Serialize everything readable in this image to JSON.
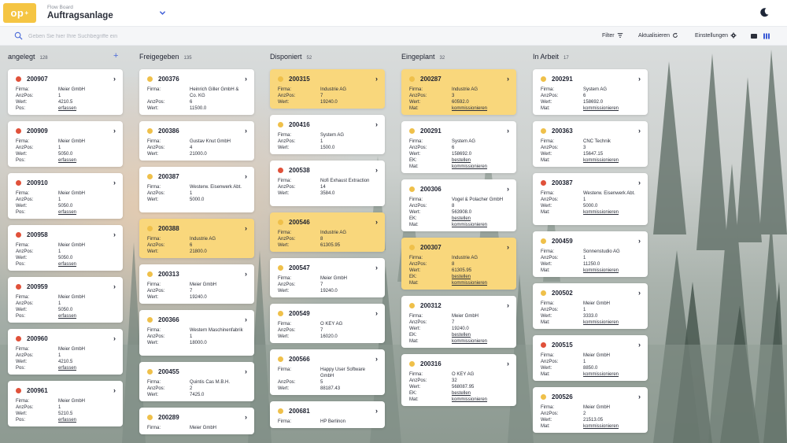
{
  "header": {
    "logo": "op",
    "logo_sup": "+",
    "subtitle": "Flow Board",
    "title": "Auftragsanlage"
  },
  "toolbar": {
    "search_placeholder": "Geben Sie hier Ihre Suchbegriffe ein",
    "filter_label": "Filter",
    "refresh_label": "Aktualisieren",
    "settings_label": "Einstellungen"
  },
  "labels": {
    "firma": "Firma:",
    "anzpos": "AnzPos:",
    "wert": "Wert:",
    "pos": "Pos:",
    "ek": "EK:",
    "mat": "Mat:"
  },
  "colors": {
    "accent": "#f5c543",
    "red": "#e0513a",
    "yellow": "#efc04a",
    "highlight": "#f9d77c"
  },
  "columns": [
    {
      "title": "angelegt",
      "count": "128",
      "add": "+",
      "cards": [
        {
          "id": "200907",
          "dot": "red",
          "hl": false,
          "rows": [
            [
              "firma",
              "Meier GmbH"
            ],
            [
              "anzpos",
              "1"
            ],
            [
              "wert",
              "4210.5"
            ],
            [
              "pos",
              "erfassen"
            ]
          ]
        },
        {
          "id": "200909",
          "dot": "red",
          "hl": false,
          "rows": [
            [
              "firma",
              "Meier GmbH"
            ],
            [
              "anzpos",
              "1"
            ],
            [
              "wert",
              "5050.0"
            ],
            [
              "pos",
              "erfassen"
            ]
          ]
        },
        {
          "id": "200910",
          "dot": "red",
          "hl": false,
          "rows": [
            [
              "firma",
              "Meier GmbH"
            ],
            [
              "anzpos",
              "1"
            ],
            [
              "wert",
              "5050.0"
            ],
            [
              "pos",
              "erfassen"
            ]
          ]
        },
        {
          "id": "200958",
          "dot": "red",
          "hl": false,
          "rows": [
            [
              "firma",
              "Meier GmbH"
            ],
            [
              "anzpos",
              "1"
            ],
            [
              "wert",
              "5050.0"
            ],
            [
              "pos",
              "erfassen"
            ]
          ]
        },
        {
          "id": "200959",
          "dot": "red",
          "hl": false,
          "rows": [
            [
              "firma",
              "Meier GmbH"
            ],
            [
              "anzpos",
              "1"
            ],
            [
              "wert",
              "5050.0"
            ],
            [
              "pos",
              "erfassen"
            ]
          ]
        },
        {
          "id": "200960",
          "dot": "red",
          "hl": false,
          "rows": [
            [
              "firma",
              "Meier GmbH"
            ],
            [
              "anzpos",
              "1"
            ],
            [
              "wert",
              "4210.5"
            ],
            [
              "pos",
              "erfassen"
            ]
          ]
        },
        {
          "id": "200961",
          "dot": "red",
          "hl": false,
          "rows": [
            [
              "firma",
              "Meier GmbH"
            ],
            [
              "anzpos",
              "1"
            ],
            [
              "wert",
              "5210.5"
            ],
            [
              "pos",
              "erfassen"
            ]
          ]
        }
      ]
    },
    {
      "title": "Freigegeben",
      "count": "135",
      "cards": [
        {
          "id": "200376",
          "dot": "yellow",
          "hl": false,
          "rows": [
            [
              "firma",
              "Heinrich Giller GmbH & Co. KG"
            ],
            [
              "anzpos",
              "6"
            ],
            [
              "wert",
              "11500.0"
            ]
          ]
        },
        {
          "id": "200386",
          "dot": "yellow",
          "hl": false,
          "rows": [
            [
              "firma",
              "Gustav Knut GmbH"
            ],
            [
              "anzpos",
              "4"
            ],
            [
              "wert",
              "21000.0"
            ]
          ]
        },
        {
          "id": "200387",
          "dot": "yellow",
          "hl": false,
          "rows": [
            [
              "firma",
              "Westerw. Eisenwerk Abt."
            ],
            [
              "anzpos",
              "1"
            ],
            [
              "wert",
              "5000.0"
            ]
          ]
        },
        {
          "id": "200388",
          "dot": "yellow",
          "hl": true,
          "rows": [
            [
              "firma",
              "Industrie AG"
            ],
            [
              "anzpos",
              "6"
            ],
            [
              "wert",
              "21800.0"
            ]
          ]
        },
        {
          "id": "200313",
          "dot": "yellow",
          "hl": false,
          "rows": [
            [
              "firma",
              "Meier GmbH"
            ],
            [
              "anzpos",
              "7"
            ],
            [
              "wert",
              "19240.0"
            ]
          ]
        },
        {
          "id": "200366",
          "dot": "yellow",
          "hl": false,
          "rows": [
            [
              "firma",
              "Western Maschinenfabrik"
            ],
            [
              "anzpos",
              "1"
            ],
            [
              "wert",
              "18000.0"
            ]
          ]
        },
        {
          "id": "200455",
          "dot": "yellow",
          "hl": false,
          "rows": [
            [
              "firma",
              "Quintis Cas M.B.H."
            ],
            [
              "anzpos",
              "2"
            ],
            [
              "wert",
              "7425.0"
            ]
          ]
        },
        {
          "id": "200289",
          "dot": "yellow",
          "hl": false,
          "rows": [
            [
              "firma",
              "Meier GmbH"
            ]
          ]
        }
      ]
    },
    {
      "title": "Disponiert",
      "count": "52",
      "cards": [
        {
          "id": "200315",
          "dot": "yellow",
          "hl": true,
          "rows": [
            [
              "firma",
              "Industrie AG"
            ],
            [
              "anzpos",
              "7"
            ],
            [
              "wert",
              "19240.0"
            ]
          ]
        },
        {
          "id": "200416",
          "dot": "yellow",
          "hl": false,
          "rows": [
            [
              "firma",
              "System AG"
            ],
            [
              "anzpos",
              "1"
            ],
            [
              "wert",
              "1500.0"
            ]
          ]
        },
        {
          "id": "200538",
          "dot": "red",
          "hl": false,
          "rows": [
            [
              "firma",
              "Nofi Exhaust Extraction"
            ],
            [
              "anzpos",
              "14"
            ],
            [
              "wert",
              "3584.0"
            ]
          ]
        },
        {
          "id": "200546",
          "dot": "yellow",
          "hl": true,
          "rows": [
            [
              "firma",
              "Industrie AG"
            ],
            [
              "anzpos",
              "8"
            ],
            [
              "wert",
              "61305.95"
            ]
          ]
        },
        {
          "id": "200547",
          "dot": "yellow",
          "hl": false,
          "rows": [
            [
              "firma",
              "Meier GmbH"
            ],
            [
              "anzpos",
              "7"
            ],
            [
              "wert",
              "19240.0"
            ]
          ]
        },
        {
          "id": "200549",
          "dot": "yellow",
          "hl": false,
          "rows": [
            [
              "firma",
              "O KEY AG"
            ],
            [
              "anzpos",
              "7"
            ],
            [
              "wert",
              "16020.0"
            ]
          ]
        },
        {
          "id": "200566",
          "dot": "yellow",
          "hl": false,
          "rows": [
            [
              "firma",
              "Happy User Software GmbH"
            ],
            [
              "anzpos",
              "5"
            ],
            [
              "wert",
              "88187.43"
            ]
          ]
        },
        {
          "id": "200681",
          "dot": "yellow",
          "hl": false,
          "rows": [
            [
              "firma",
              "HP Berlinon"
            ]
          ]
        }
      ]
    },
    {
      "title": "Eingeplant",
      "count": "32",
      "cards": [
        {
          "id": "200287",
          "dot": "yellow",
          "hl": true,
          "rows": [
            [
              "firma",
              "Industrie AG"
            ],
            [
              "anzpos",
              "3"
            ],
            [
              "wert",
              "60592.0"
            ],
            [
              "mat",
              "kommissionieren"
            ]
          ]
        },
        {
          "id": "200291",
          "dot": "yellow",
          "hl": false,
          "rows": [
            [
              "firma",
              "System AG"
            ],
            [
              "anzpos",
              "6"
            ],
            [
              "wert",
              "158692.0"
            ],
            [
              "ek",
              "bestellen"
            ],
            [
              "mat",
              "kommissionieren"
            ]
          ]
        },
        {
          "id": "200306",
          "dot": "yellow",
          "hl": false,
          "rows": [
            [
              "firma",
              "Vogel & Polacher GmbH"
            ],
            [
              "anzpos",
              "8"
            ],
            [
              "wert",
              "563908.0"
            ],
            [
              "ek",
              "bestellen"
            ],
            [
              "mat",
              "kommissionieren"
            ]
          ]
        },
        {
          "id": "200307",
          "dot": "yellow",
          "hl": true,
          "rows": [
            [
              "firma",
              "Industrie AG"
            ],
            [
              "anzpos",
              "8"
            ],
            [
              "wert",
              "61305.95"
            ],
            [
              "ek",
              "bestellen"
            ],
            [
              "mat",
              "kommissionieren"
            ]
          ]
        },
        {
          "id": "200312",
          "dot": "yellow",
          "hl": false,
          "rows": [
            [
              "firma",
              "Meier GmbH"
            ],
            [
              "anzpos",
              "7"
            ],
            [
              "wert",
              "19240.0"
            ],
            [
              "ek",
              "bestellen"
            ],
            [
              "mat",
              "kommissionieren"
            ]
          ]
        },
        {
          "id": "200316",
          "dot": "yellow",
          "hl": false,
          "rows": [
            [
              "firma",
              "O KEY AG"
            ],
            [
              "anzpos",
              "32"
            ],
            [
              "wert",
              "568087.95"
            ],
            [
              "ek",
              "bestellen"
            ],
            [
              "mat",
              "kommissionieren"
            ]
          ]
        }
      ]
    },
    {
      "title": "In Arbeit",
      "count": "17",
      "cards": [
        {
          "id": "200291",
          "dot": "yellow",
          "hl": false,
          "rows": [
            [
              "firma",
              "System AG"
            ],
            [
              "anzpos",
              "6"
            ],
            [
              "wert",
              "158692.0"
            ],
            [
              "mat",
              "kommissionieren"
            ]
          ]
        },
        {
          "id": "200363",
          "dot": "yellow",
          "hl": false,
          "rows": [
            [
              "firma",
              "CNC Technik"
            ],
            [
              "anzpos",
              "3"
            ],
            [
              "wert",
              "15647.15"
            ],
            [
              "mat",
              "kommissionieren"
            ]
          ]
        },
        {
          "id": "200387",
          "dot": "red",
          "hl": false,
          "rows": [
            [
              "firma",
              "Westerw. Eisenwerk Abt."
            ],
            [
              "anzpos",
              "1"
            ],
            [
              "wert",
              "5000.0"
            ],
            [
              "mat",
              "kommissionieren"
            ]
          ]
        },
        {
          "id": "200459",
          "dot": "yellow",
          "hl": false,
          "rows": [
            [
              "firma",
              "Sonnenstudio AG"
            ],
            [
              "anzpos",
              "1"
            ],
            [
              "wert",
              "11250.0"
            ],
            [
              "mat",
              "kommissionieren"
            ]
          ]
        },
        {
          "id": "200502",
          "dot": "yellow",
          "hl": false,
          "rows": [
            [
              "firma",
              "Meier GmbH"
            ],
            [
              "anzpos",
              "1"
            ],
            [
              "wert",
              "3333.0"
            ],
            [
              "mat",
              "kommissionieren"
            ]
          ]
        },
        {
          "id": "200515",
          "dot": "red",
          "hl": false,
          "rows": [
            [
              "firma",
              "Meier GmbH"
            ],
            [
              "anzpos",
              "1"
            ],
            [
              "wert",
              "8850.0"
            ],
            [
              "mat",
              "kommissionieren"
            ]
          ]
        },
        {
          "id": "200526",
          "dot": "yellow",
          "hl": false,
          "rows": [
            [
              "firma",
              "Meier GmbH"
            ],
            [
              "anzpos",
              "2"
            ],
            [
              "wert",
              "21513.05"
            ],
            [
              "mat",
              "kommissionieren"
            ]
          ]
        }
      ]
    }
  ]
}
